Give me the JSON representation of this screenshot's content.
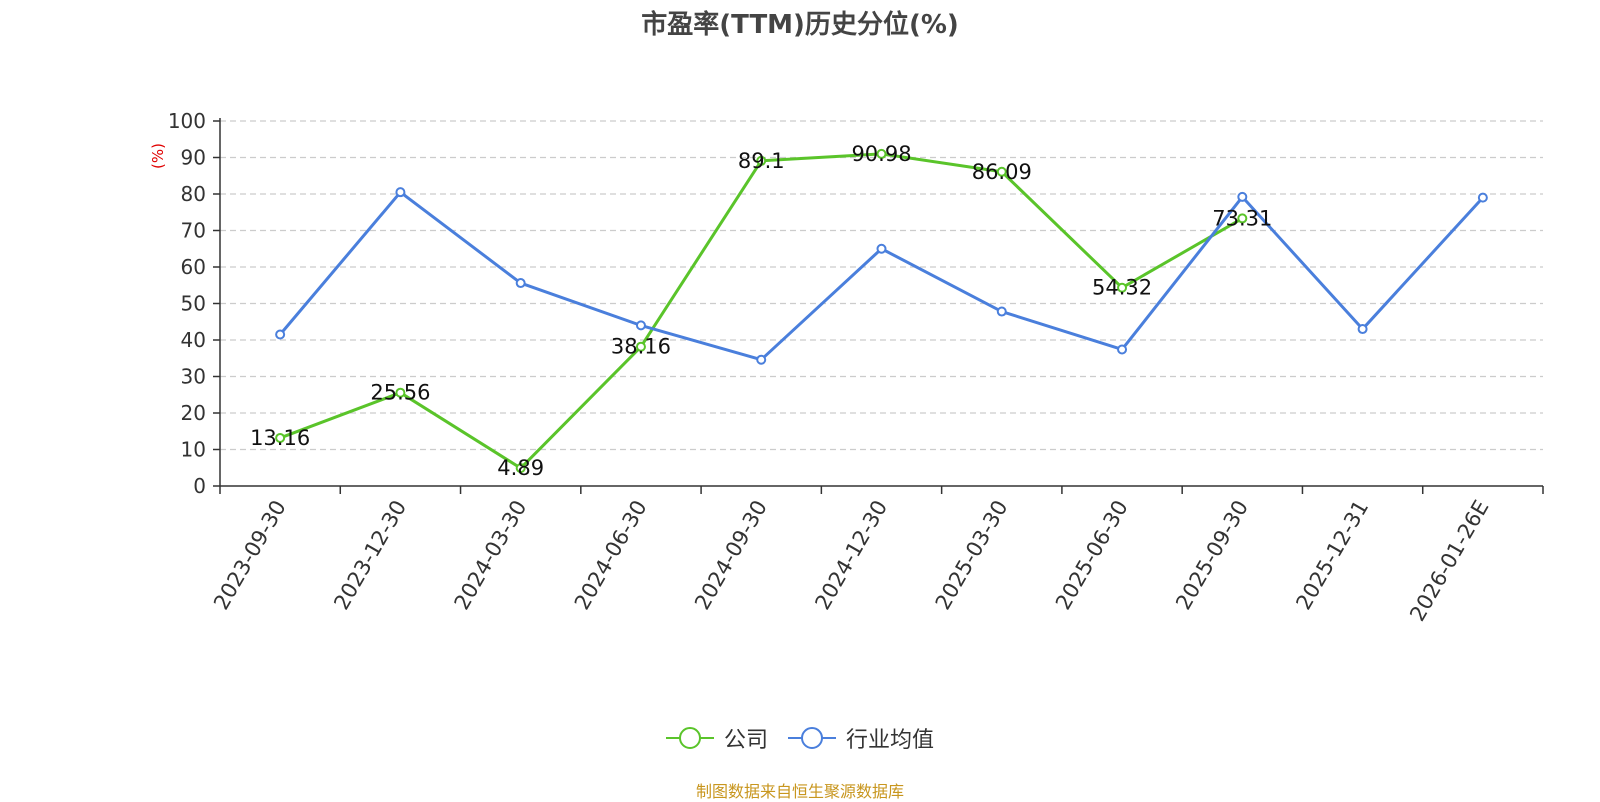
{
  "chart_data": {
    "type": "line",
    "title": "市盈率(TTM)历史分位(%)",
    "ylabel": "(%)",
    "ylim": [
      0,
      100
    ],
    "yticks": [
      0,
      10,
      20,
      30,
      40,
      50,
      60,
      70,
      80,
      90,
      100
    ],
    "grid": true,
    "legend_position": "bottom",
    "categories": [
      "2023-09-30",
      "2023-12-30",
      "2024-03-30",
      "2024-06-30",
      "2024-09-30",
      "2024-12-30",
      "2025-03-30",
      "2025-06-30",
      "2025-09-30",
      "2025-12-31",
      "2026-01-26E"
    ],
    "series": [
      {
        "name": "公司",
        "color": "#5ac42a",
        "values": [
          13.16,
          25.56,
          4.89,
          38.16,
          89.1,
          90.98,
          86.09,
          54.32,
          73.31,
          null,
          null
        ],
        "show_labels": true
      },
      {
        "name": "行业均值",
        "color": "#4a7fdc",
        "values": [
          41.5,
          80.5,
          55.6,
          44.0,
          34.6,
          65.0,
          47.8,
          37.4,
          79.2,
          43.0,
          79.0
        ],
        "show_labels": false
      }
    ]
  },
  "colors": {
    "unit_label": "#e00000",
    "source": "#c8961e",
    "grid": "#cccccc",
    "axis": "#333333"
  },
  "source": "制图数据来自恒生聚源数据库"
}
